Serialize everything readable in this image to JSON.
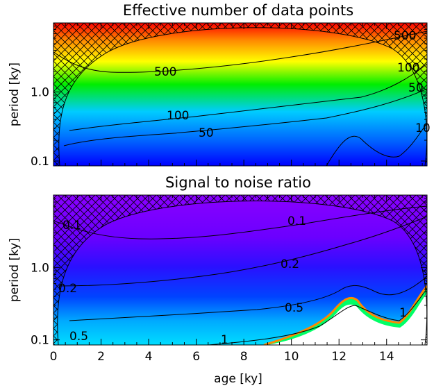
{
  "chart_data": [
    {
      "type": "heatmap",
      "title": "Effective number of data points",
      "xlabel": "",
      "ylabel": "period [ky]",
      "xlim": [
        0,
        15.7
      ],
      "ylim": [
        0.085,
        10.0
      ],
      "y_scale": "log",
      "x_ticks": [
        0,
        2,
        4,
        6,
        8,
        10,
        12,
        14
      ],
      "x_tick_labels": [],
      "y_ticks": [
        0.1,
        1.0
      ],
      "y_tick_labels": [
        "0.1",
        "1.0"
      ],
      "colormap": "rainbow (blue low → red high)",
      "hatched_region": "cone of influence (outside)",
      "contours": [
        {
          "level": "500",
          "label": "500"
        },
        {
          "level": "100",
          "label": "100"
        },
        {
          "level": "50",
          "label": "50"
        },
        {
          "level": "10",
          "label": "10"
        }
      ]
    },
    {
      "type": "heatmap",
      "title": "Signal to noise ratio",
      "xlabel": "age [ky]",
      "ylabel": "period [ky]",
      "xlim": [
        0,
        15.7
      ],
      "ylim": [
        0.085,
        10.0
      ],
      "y_scale": "log",
      "x_ticks": [
        0,
        2,
        4,
        6,
        8,
        10,
        12,
        14
      ],
      "x_tick_labels": [
        "0",
        "2",
        "4",
        "6",
        "8",
        "10",
        "12",
        "14"
      ],
      "y_ticks": [
        0.1,
        1.0
      ],
      "y_tick_labels": [
        "0.1",
        "1.0"
      ],
      "colormap": "rainbow (violet low → red high)",
      "hatched_region": "cone of influence (outside)",
      "contours": [
        {
          "level": "0.1",
          "label": "0.1"
        },
        {
          "level": "0.2",
          "label": "0.2"
        },
        {
          "level": "0.5",
          "label": "0.5"
        },
        {
          "level": "1",
          "label": "1"
        }
      ]
    }
  ]
}
